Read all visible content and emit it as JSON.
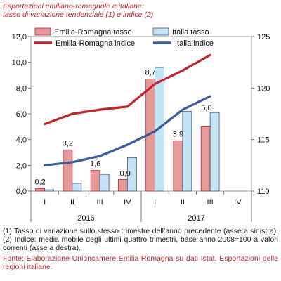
{
  "chart_data": {
    "type": "bar",
    "title_line1": "Esportazioni emiliano-romagnole e italiane:",
    "title_line2": "tasso di variazione tendenziale (1) e indice (2)",
    "quarters": [
      "I",
      "II",
      "III",
      "IV",
      "I",
      "II",
      "III",
      "IV"
    ],
    "years": [
      "2016",
      "2017"
    ],
    "left_axis": {
      "min": 0,
      "max": 12,
      "ticks": [
        "0,0",
        "2,0",
        "4,0",
        "6,0",
        "8,0",
        "10,0",
        "12,0"
      ]
    },
    "right_axis": {
      "min": 110,
      "max": 125,
      "ticks": [
        "110",
        "115",
        "120",
        "125"
      ]
    },
    "legend": {
      "bar_er": "Emilia-Romagna tasso",
      "bar_it": "Italia tasso",
      "line_er": "Emilia-Romagna indice",
      "line_it": "Italia indice"
    },
    "bar_series": [
      {
        "name": "Emilia-Romagna tasso",
        "values": [
          0.2,
          3.2,
          1.6,
          0.9,
          8.7,
          3.9,
          5.0,
          null
        ]
      },
      {
        "name": "Italia tasso",
        "values": [
          0.1,
          0.6,
          1.3,
          2.6,
          9.6,
          6.2,
          6.1,
          null
        ]
      }
    ],
    "bar_labels": [
      "0,2",
      "3,2",
      "1,6",
      "0,9",
      "8,7",
      "3,9",
      "5,0",
      ""
    ],
    "line_series": [
      {
        "name": "Emilia-Romagna indice",
        "values": [
          116.5,
          117.5,
          117.9,
          118.2,
          120.4,
          121.7,
          123.2,
          null
        ]
      },
      {
        "name": "Italia indice",
        "values": [
          112.5,
          112.8,
          113.4,
          114.5,
          115.8,
          117.9,
          119.2,
          null
        ]
      }
    ],
    "colors": {
      "bar_er": "#e59a9a",
      "bar_er_border": "#c0242b",
      "bar_it": "#c5e3f2",
      "bar_it_border": "#3a5a8c",
      "line_er": "#c0242b",
      "line_it": "#3b5b9a"
    }
  },
  "notes_text": "(1) Tasso di variazione sullo stesso trimestre dell’anno precedente (asse a sinistra). (2) Indice: media mobile degli ultimi quattro trimestri, base anno 2008=100 a valori correnti (asse a destra).",
  "source_text": "Fonte: Elaborazione Unioncamere Emilia-Romagna su dati Istat, Esportazioni delle regioni italiane."
}
